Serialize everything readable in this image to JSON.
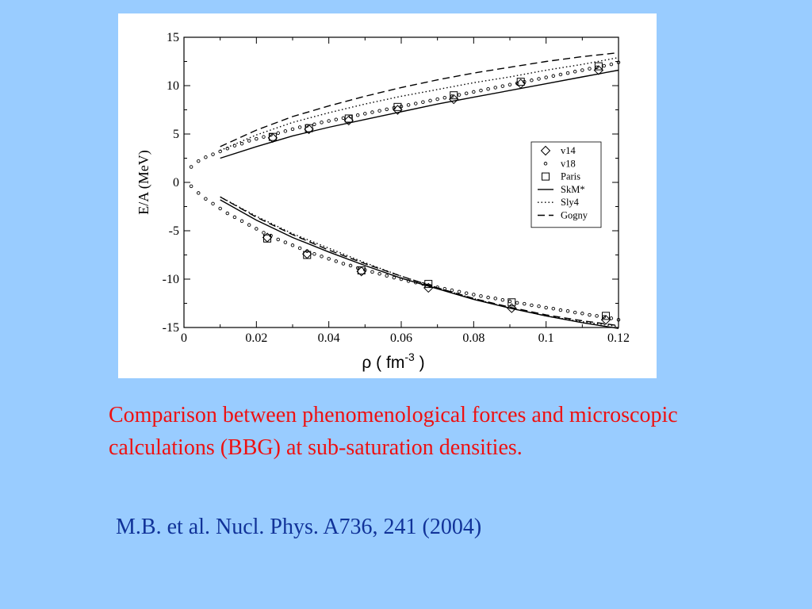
{
  "slide": {
    "background_color": "#99ccff",
    "caption": "Comparison between phenomenological forces and microscopic calculations (BBG) at sub-saturation densities.",
    "caption_color": "#ee1111",
    "reference": "M.B. et al. Nucl. Phys. A736, 241 (2004)",
    "reference_color": "#113399"
  },
  "chart_data": {
    "type": "line",
    "xlabel": "ρ  ( fm",
    "xlabel_exponent": "-3",
    "xlabel_suffix": " )",
    "ylabel": "E/A (MeV)",
    "xlim": [
      0,
      0.12
    ],
    "ylim": [
      -15,
      15
    ],
    "xticks": [
      0,
      0.02,
      0.04,
      0.06,
      0.08,
      0.1,
      0.12
    ],
    "xtick_labels": [
      "0",
      "0.02",
      "0.04",
      "0.06",
      "0.08",
      "0.1",
      "0.12"
    ],
    "yticks": [
      -15,
      -10,
      -5,
      0,
      5,
      10,
      15
    ],
    "ytick_labels": [
      "-15",
      "-10",
      "-5",
      "0",
      "5",
      "10",
      "15"
    ],
    "grid": false,
    "legend_position": "right",
    "series": [
      {
        "name": "v14",
        "kind": "marker",
        "marker": "diamond",
        "points": [
          [
            0.0245,
            4.6
          ],
          [
            0.0345,
            5.5
          ],
          [
            0.0455,
            6.4
          ],
          [
            0.059,
            7.5
          ],
          [
            0.0745,
            8.6
          ],
          [
            0.093,
            10.2
          ],
          [
            0.1145,
            11.6
          ],
          [
            0.023,
            -5.7
          ],
          [
            0.034,
            -7.4
          ],
          [
            0.049,
            -9.2
          ],
          [
            0.0675,
            -10.9
          ],
          [
            0.0905,
            -13.0
          ],
          [
            0.1165,
            -14.2
          ]
        ]
      },
      {
        "name": "v18",
        "kind": "marker",
        "marker": "circle",
        "points": [
          [
            0.002,
            1.6
          ],
          [
            0.004,
            2.2
          ],
          [
            0.006,
            2.6
          ],
          [
            0.008,
            2.9
          ],
          [
            0.01,
            3.2
          ],
          [
            0.012,
            3.5
          ],
          [
            0.014,
            3.8
          ],
          [
            0.016,
            4.0
          ],
          [
            0.018,
            4.3
          ],
          [
            0.02,
            4.5
          ],
          [
            0.022,
            4.7
          ],
          [
            0.024,
            4.9
          ],
          [
            0.026,
            5.1
          ],
          [
            0.028,
            5.3
          ],
          [
            0.03,
            5.5
          ],
          [
            0.032,
            5.7
          ],
          [
            0.034,
            5.85
          ],
          [
            0.036,
            6.0
          ],
          [
            0.038,
            6.2
          ],
          [
            0.04,
            6.35
          ],
          [
            0.042,
            6.5
          ],
          [
            0.044,
            6.65
          ],
          [
            0.046,
            6.8
          ],
          [
            0.048,
            6.95
          ],
          [
            0.05,
            7.1
          ],
          [
            0.052,
            7.25
          ],
          [
            0.054,
            7.4
          ],
          [
            0.056,
            7.55
          ],
          [
            0.058,
            7.7
          ],
          [
            0.06,
            7.85
          ],
          [
            0.062,
            8.0
          ],
          [
            0.064,
            8.15
          ],
          [
            0.066,
            8.3
          ],
          [
            0.068,
            8.45
          ],
          [
            0.07,
            8.6
          ],
          [
            0.072,
            8.75
          ],
          [
            0.074,
            8.9
          ],
          [
            0.076,
            9.05
          ],
          [
            0.078,
            9.2
          ],
          [
            0.08,
            9.35
          ],
          [
            0.082,
            9.5
          ],
          [
            0.084,
            9.65
          ],
          [
            0.086,
            9.8
          ],
          [
            0.088,
            9.95
          ],
          [
            0.09,
            10.1
          ],
          [
            0.092,
            10.25
          ],
          [
            0.094,
            10.4
          ],
          [
            0.096,
            10.55
          ],
          [
            0.098,
            10.7
          ],
          [
            0.1,
            10.85
          ],
          [
            0.102,
            11.0
          ],
          [
            0.104,
            11.15
          ],
          [
            0.106,
            11.3
          ],
          [
            0.108,
            11.45
          ],
          [
            0.11,
            11.6
          ],
          [
            0.112,
            11.75
          ],
          [
            0.114,
            11.9
          ],
          [
            0.116,
            12.05
          ],
          [
            0.118,
            12.2
          ],
          [
            0.12,
            12.4
          ],
          [
            0.002,
            -0.4
          ],
          [
            0.004,
            -1.1
          ],
          [
            0.006,
            -1.7
          ],
          [
            0.008,
            -2.2
          ],
          [
            0.01,
            -2.7
          ],
          [
            0.012,
            -3.2
          ],
          [
            0.014,
            -3.6
          ],
          [
            0.016,
            -4.0
          ],
          [
            0.018,
            -4.4
          ],
          [
            0.02,
            -4.8
          ],
          [
            0.022,
            -5.2
          ],
          [
            0.024,
            -5.5
          ],
          [
            0.026,
            -5.9
          ],
          [
            0.028,
            -6.2
          ],
          [
            0.03,
            -6.5
          ],
          [
            0.032,
            -6.8
          ],
          [
            0.034,
            -7.1
          ],
          [
            0.036,
            -7.4
          ],
          [
            0.038,
            -7.65
          ],
          [
            0.04,
            -7.9
          ],
          [
            0.042,
            -8.15
          ],
          [
            0.044,
            -8.4
          ],
          [
            0.046,
            -8.6
          ],
          [
            0.048,
            -8.85
          ],
          [
            0.05,
            -9.05
          ],
          [
            0.052,
            -9.25
          ],
          [
            0.054,
            -9.45
          ],
          [
            0.056,
            -9.65
          ],
          [
            0.058,
            -9.85
          ],
          [
            0.06,
            -10.0
          ],
          [
            0.062,
            -10.2
          ],
          [
            0.064,
            -10.35
          ],
          [
            0.066,
            -10.5
          ],
          [
            0.068,
            -10.7
          ],
          [
            0.07,
            -10.85
          ],
          [
            0.072,
            -11.0
          ],
          [
            0.074,
            -11.15
          ],
          [
            0.076,
            -11.3
          ],
          [
            0.078,
            -11.45
          ],
          [
            0.08,
            -11.6
          ],
          [
            0.082,
            -11.75
          ],
          [
            0.084,
            -11.9
          ],
          [
            0.086,
            -12.0
          ],
          [
            0.088,
            -12.15
          ],
          [
            0.09,
            -12.3
          ],
          [
            0.092,
            -12.45
          ],
          [
            0.094,
            -12.55
          ],
          [
            0.096,
            -12.7
          ],
          [
            0.098,
            -12.8
          ],
          [
            0.1,
            -12.95
          ],
          [
            0.102,
            -13.05
          ],
          [
            0.104,
            -13.2
          ],
          [
            0.106,
            -13.3
          ],
          [
            0.108,
            -13.45
          ],
          [
            0.11,
            -13.55
          ],
          [
            0.112,
            -13.7
          ],
          [
            0.114,
            -13.8
          ],
          [
            0.116,
            -13.9
          ],
          [
            0.118,
            -14.05
          ],
          [
            0.12,
            -14.2
          ]
        ]
      },
      {
        "name": "Paris",
        "kind": "marker",
        "marker": "square",
        "points": [
          [
            0.0245,
            4.7
          ],
          [
            0.0345,
            5.6
          ],
          [
            0.0455,
            6.6
          ],
          [
            0.059,
            7.8
          ],
          [
            0.0745,
            9.0
          ],
          [
            0.093,
            10.4
          ],
          [
            0.1145,
            12.0
          ],
          [
            0.023,
            -5.8
          ],
          [
            0.034,
            -7.5
          ],
          [
            0.049,
            -9.1
          ],
          [
            0.0675,
            -10.5
          ],
          [
            0.0905,
            -12.4
          ],
          [
            0.1165,
            -13.8
          ]
        ]
      },
      {
        "name": "SkM*",
        "kind": "line",
        "dash": "",
        "segments": [
          [
            [
              0.01,
              2.5
            ],
            [
              0.02,
              3.7
            ],
            [
              0.03,
              4.8
            ],
            [
              0.04,
              5.7
            ],
            [
              0.05,
              6.5
            ],
            [
              0.06,
              7.3
            ],
            [
              0.07,
              8.1
            ],
            [
              0.08,
              8.8
            ],
            [
              0.09,
              9.5
            ],
            [
              0.1,
              10.2
            ],
            [
              0.11,
              10.9
            ],
            [
              0.12,
              11.6
            ]
          ],
          [
            [
              0.01,
              -1.8
            ],
            [
              0.02,
              -3.9
            ],
            [
              0.03,
              -5.7
            ],
            [
              0.04,
              -7.2
            ],
            [
              0.05,
              -8.6
            ],
            [
              0.06,
              -9.9
            ],
            [
              0.07,
              -11.0
            ],
            [
              0.08,
              -12.1
            ],
            [
              0.09,
              -13.0
            ],
            [
              0.1,
              -13.8
            ],
            [
              0.11,
              -14.5
            ],
            [
              0.12,
              -15.1
            ]
          ]
        ]
      },
      {
        "name": "Sly4",
        "kind": "line",
        "dash": "1.5,3",
        "segments": [
          [
            [
              0.01,
              3.3
            ],
            [
              0.02,
              4.9
            ],
            [
              0.03,
              6.2
            ],
            [
              0.04,
              7.2
            ],
            [
              0.05,
              8.1
            ],
            [
              0.06,
              8.9
            ],
            [
              0.07,
              9.6
            ],
            [
              0.08,
              10.3
            ],
            [
              0.09,
              10.9
            ],
            [
              0.1,
              11.6
            ],
            [
              0.11,
              12.2
            ],
            [
              0.12,
              12.9
            ]
          ],
          [
            [
              0.01,
              -1.5
            ],
            [
              0.02,
              -3.5
            ],
            [
              0.03,
              -5.3
            ],
            [
              0.04,
              -6.8
            ],
            [
              0.05,
              -8.3
            ],
            [
              0.06,
              -9.7
            ],
            [
              0.07,
              -10.9
            ],
            [
              0.08,
              -12.0
            ],
            [
              0.09,
              -13.0
            ],
            [
              0.1,
              -13.8
            ],
            [
              0.11,
              -14.4
            ],
            [
              0.12,
              -14.9
            ]
          ]
        ]
      },
      {
        "name": "Gogny",
        "kind": "line",
        "dash": "9,5",
        "segments": [
          [
            [
              0.01,
              3.7
            ],
            [
              0.02,
              5.4
            ],
            [
              0.03,
              6.8
            ],
            [
              0.04,
              7.9
            ],
            [
              0.05,
              8.9
            ],
            [
              0.06,
              9.8
            ],
            [
              0.07,
              10.6
            ],
            [
              0.08,
              11.3
            ],
            [
              0.09,
              11.9
            ],
            [
              0.1,
              12.5
            ],
            [
              0.11,
              13.0
            ],
            [
              0.12,
              13.4
            ]
          ],
          [
            [
              0.01,
              -1.5
            ],
            [
              0.02,
              -3.6
            ],
            [
              0.03,
              -5.4
            ],
            [
              0.04,
              -7.0
            ],
            [
              0.05,
              -8.4
            ],
            [
              0.06,
              -9.7
            ],
            [
              0.07,
              -10.9
            ],
            [
              0.08,
              -12.0
            ],
            [
              0.09,
              -12.9
            ],
            [
              0.1,
              -13.7
            ],
            [
              0.11,
              -14.3
            ],
            [
              0.12,
              -14.8
            ]
          ]
        ]
      }
    ]
  }
}
